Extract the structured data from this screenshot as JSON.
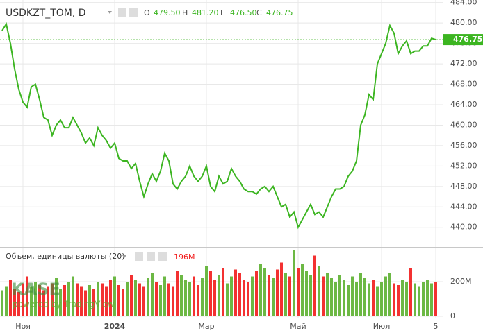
{
  "chart_data": [
    {
      "type": "line",
      "title": "USDKZT_TOM, D",
      "ohlc": [
        {
          "name": "O",
          "value": 479.5,
          "label": "479.50"
        },
        {
          "name": "H",
          "value": 481.2,
          "label": "481.20"
        },
        {
          "name": "L",
          "value": 476.5,
          "label": "476.50"
        },
        {
          "name": "C",
          "value": 476.75,
          "label": "476.75"
        }
      ],
      "categories": [
        null,
        null,
        null,
        null,
        null,
        "Ноя",
        null,
        null,
        null,
        null,
        null,
        null,
        null,
        null,
        null,
        null,
        null,
        null,
        null,
        null,
        null,
        null,
        null,
        null,
        null,
        null,
        null,
        "2024",
        null,
        null,
        null,
        null,
        null,
        null,
        null,
        null,
        null,
        null,
        null,
        null,
        null,
        null,
        null,
        null,
        null,
        null,
        null,
        null,
        null,
        "Мар",
        null,
        null,
        null,
        null,
        null,
        null,
        null,
        null,
        null,
        null,
        null,
        null,
        null,
        null,
        null,
        null,
        null,
        null,
        null,
        null,
        null,
        "Май",
        null,
        null,
        null,
        null,
        null,
        null,
        null,
        null,
        null,
        null,
        null,
        null,
        null,
        null,
        null,
        null,
        null,
        null,
        null,
        "Июл",
        null,
        null,
        null,
        null,
        null,
        null,
        null,
        null,
        null,
        null,
        null,
        null,
        "5"
      ],
      "series": [
        {
          "color": "#3cb521",
          "values": [
            478.5,
            479.8,
            476,
            471,
            467,
            464.5,
            463.5,
            467.5,
            468,
            465,
            461.5,
            461,
            458,
            460,
            461,
            459.5,
            459.5,
            461.5,
            460,
            458.5,
            456.5,
            457.5,
            456,
            459.5,
            458,
            457,
            455.5,
            456.5,
            453.5,
            453,
            453,
            451.5,
            452.5,
            449,
            446,
            448.5,
            450.5,
            449,
            451,
            454.5,
            453,
            448.5,
            447.5,
            449,
            450,
            452,
            450,
            449,
            450,
            452,
            448,
            447,
            450,
            448.5,
            449,
            451.5,
            450,
            449,
            447.5,
            447,
            447,
            446.5,
            447.5,
            448,
            447,
            448,
            446,
            444,
            444.5,
            442,
            443,
            440,
            441.5,
            443,
            444.5,
            442.5,
            443,
            442,
            444,
            446,
            447.5,
            447.5,
            448,
            450,
            451,
            453,
            460,
            462,
            466,
            465,
            472,
            474,
            476,
            479.5,
            478,
            474,
            475.5,
            476.5,
            474,
            474.5,
            474.5,
            475.5,
            475.5,
            477,
            476.75
          ]
        }
      ],
      "ylim": [
        436.3,
        484.5
      ],
      "yticks": [
        {
          "value": 440,
          "label": "440.00"
        },
        {
          "value": 444,
          "label": "444.00"
        },
        {
          "value": 448,
          "label": "448.00"
        },
        {
          "value": 452,
          "label": "452.00"
        },
        {
          "value": 456,
          "label": "456.00"
        },
        {
          "value": 460,
          "label": "460.00"
        },
        {
          "value": 464,
          "label": "464.00"
        },
        {
          "value": 468,
          "label": "468.00"
        },
        {
          "value": 472,
          "label": "472.00"
        },
        {
          "value": 476,
          "label": "476.00"
        },
        {
          "value": 480,
          "label": "480.00"
        },
        {
          "value": 484,
          "label": "484.00"
        }
      ],
      "grid": true
    },
    {
      "type": "bar",
      "title": "Объем, единицы валюты (20)",
      "last": {
        "value": 196,
        "label": "196M",
        "color": "#f21b1b"
      },
      "series": [
        {
          "up_color": "#5cb030",
          "down_color": "#f21b1b",
          "values": [
            150,
            170,
            210,
            160,
            140,
            190,
            230,
            170,
            200,
            180,
            150,
            170,
            190,
            220,
            160,
            180,
            200,
            230,
            190,
            170,
            150,
            180,
            160,
            200,
            190,
            170,
            210,
            230,
            180,
            160,
            200,
            240,
            210,
            190,
            170,
            220,
            250,
            200,
            180,
            230,
            190,
            170,
            260,
            240,
            210,
            200,
            230,
            180,
            220,
            290,
            260,
            210,
            240,
            280,
            190,
            230,
            270,
            250,
            210,
            200,
            230,
            260,
            300,
            280,
            240,
            220,
            270,
            310,
            250,
            230,
            380,
            280,
            300,
            260,
            240,
            350,
            290,
            230,
            250,
            220,
            200,
            240,
            210,
            180,
            230,
            200,
            250,
            220,
            190,
            210,
            170,
            200,
            230,
            250,
            190,
            180,
            210,
            200,
            280,
            190,
            170,
            200,
            210,
            190,
            196
          ]
        }
      ],
      "ylim": [
        0,
        396
      ],
      "yticks": [
        0,
        {
          "value": 200,
          "label": "200M"
        }
      ],
      "grid": true
    }
  ],
  "watermark": {
    "logo": "KASE",
    "text": "powered by TradingView"
  }
}
